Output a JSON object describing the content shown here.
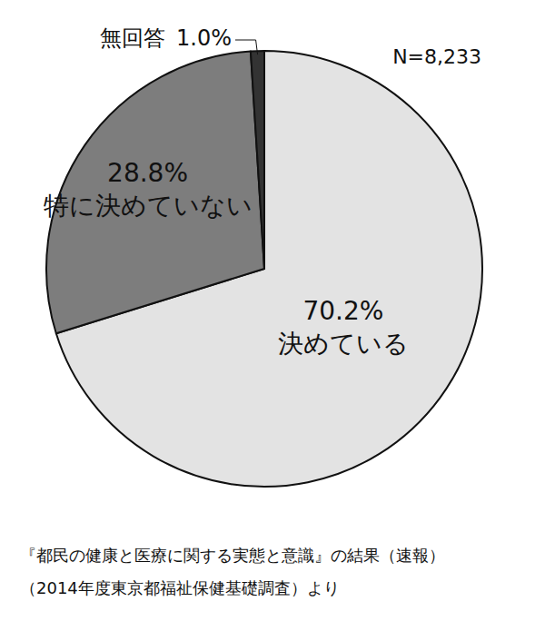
{
  "chart_data": {
    "type": "pie",
    "categories": [
      "決めている",
      "特に決めていない",
      "無回答"
    ],
    "values": [
      70.2,
      28.8,
      1.0
    ],
    "value_labels": [
      "70.2%",
      "28.8%",
      "1.0%"
    ],
    "colors": [
      "#e3e3e3",
      "#7d7d7d",
      "#333333"
    ],
    "data_labels": true,
    "annotation": "N=8,233",
    "source": [
      "『都民の健康と医療に関する実態と意識』の結果（速報）",
      "（2014年度東京都福祉保健基礎調査）より"
    ]
  }
}
